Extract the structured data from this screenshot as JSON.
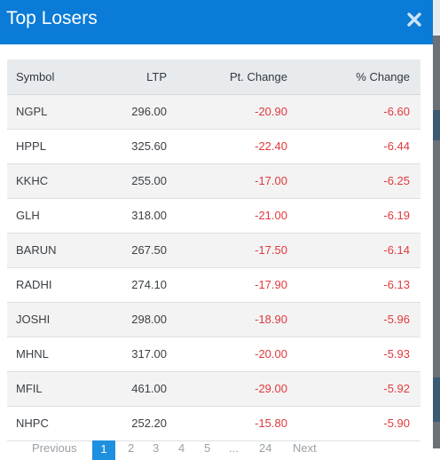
{
  "modal": {
    "title": "Top Losers"
  },
  "icons": {
    "close": "close-icon"
  },
  "colors": {
    "header_bg": "#0a7bd6",
    "negative": "#e03a3e",
    "active_page": "#1f8fe0"
  },
  "table": {
    "headers": {
      "symbol": "Symbol",
      "ltp": "LTP",
      "pt_change": "Pt. Change",
      "pct_change": "% Change"
    },
    "rows": [
      {
        "symbol": "NGPL",
        "ltp": "296.00",
        "pt_change": "-20.90",
        "pct_change": "-6.60"
      },
      {
        "symbol": "HPPL",
        "ltp": "325.60",
        "pt_change": "-22.40",
        "pct_change": "-6.44"
      },
      {
        "symbol": "KKHC",
        "ltp": "255.00",
        "pt_change": "-17.00",
        "pct_change": "-6.25"
      },
      {
        "symbol": "GLH",
        "ltp": "318.00",
        "pt_change": "-21.00",
        "pct_change": "-6.19"
      },
      {
        "symbol": "BARUN",
        "ltp": "267.50",
        "pt_change": "-17.50",
        "pct_change": "-6.14"
      },
      {
        "symbol": "RADHI",
        "ltp": "274.10",
        "pt_change": "-17.90",
        "pct_change": "-6.13"
      },
      {
        "symbol": "JOSHI",
        "ltp": "298.00",
        "pt_change": "-18.90",
        "pct_change": "-5.96"
      },
      {
        "symbol": "MHNL",
        "ltp": "317.00",
        "pt_change": "-20.00",
        "pct_change": "-5.93"
      },
      {
        "symbol": "MFIL",
        "ltp": "461.00",
        "pt_change": "-29.00",
        "pct_change": "-5.92"
      },
      {
        "symbol": "NHPC",
        "ltp": "252.20",
        "pt_change": "-15.80",
        "pct_change": "-5.90"
      }
    ]
  },
  "pagination": {
    "previous": "Previous",
    "pages": [
      "1",
      "2",
      "3",
      "4",
      "5"
    ],
    "ellipsis": "...",
    "last": "24",
    "next": "Next",
    "current": "1"
  }
}
